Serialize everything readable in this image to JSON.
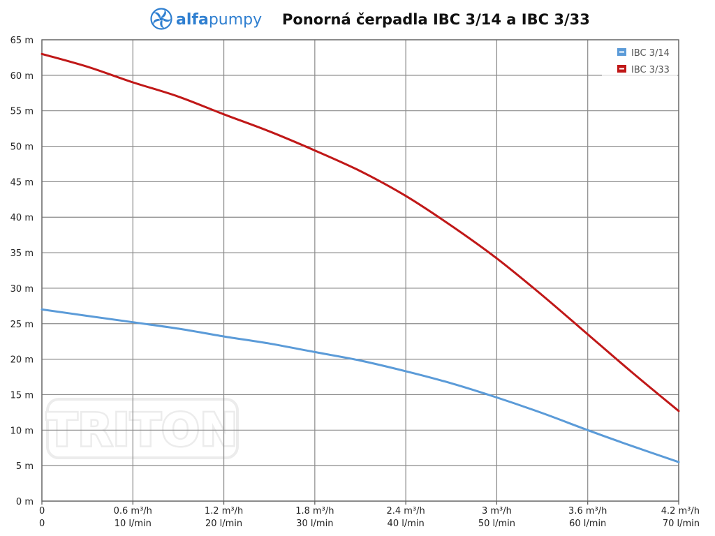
{
  "brand": {
    "part1": "alfa",
    "part2": "pumpy",
    "icon": "pump-impeller-icon",
    "color": "#2f7fd0"
  },
  "watermark": {
    "text": "TRITON"
  },
  "chart_data": {
    "type": "line",
    "title": "Ponorná čerpadla IBC 3/14 a IBC 3/33",
    "xlabel": "",
    "ylabel": "",
    "xlim": [
      0,
      70
    ],
    "ylim": [
      0,
      65
    ],
    "grid": true,
    "legend_position": "top-right",
    "y_ticks": [
      {
        "value": 0,
        "label": "0 m"
      },
      {
        "value": 5,
        "label": "5 m"
      },
      {
        "value": 10,
        "label": "10 m"
      },
      {
        "value": 15,
        "label": "15 m"
      },
      {
        "value": 20,
        "label": "20 m"
      },
      {
        "value": 25,
        "label": "25 m"
      },
      {
        "value": 30,
        "label": "30 m"
      },
      {
        "value": 35,
        "label": "35 m"
      },
      {
        "value": 40,
        "label": "40 m"
      },
      {
        "value": 45,
        "label": "45 m"
      },
      {
        "value": 50,
        "label": "50 m"
      },
      {
        "value": 55,
        "label": "55 m"
      },
      {
        "value": 60,
        "label": "60 m"
      },
      {
        "value": 65,
        "label": "65 m"
      }
    ],
    "x_ticks": [
      {
        "value": 0,
        "label1": "0",
        "label2": "0"
      },
      {
        "value": 10,
        "label1": "0.6 m³/h",
        "label2": "10 l/min"
      },
      {
        "value": 20,
        "label1": "1.2 m³/h",
        "label2": "20 l/min"
      },
      {
        "value": 30,
        "label1": "1.8 m³/h",
        "label2": "30 l/min"
      },
      {
        "value": 40,
        "label1": "2.4 m³/h",
        "label2": "40 l/min"
      },
      {
        "value": 50,
        "label1": "3 m³/h",
        "label2": "50 l/min"
      },
      {
        "value": 60,
        "label1": "3.6 m³/h",
        "label2": "60 l/min"
      },
      {
        "value": 70,
        "label1": "4.2 m³/h",
        "label2": "70 l/min"
      }
    ],
    "series": [
      {
        "name": "IBC 3/14",
        "color": "#5b9bd8",
        "x": [
          0,
          5,
          10,
          15,
          20,
          25,
          30,
          35,
          40,
          45,
          50,
          55,
          60,
          65,
          70
        ],
        "y": [
          27,
          26.1,
          25.2,
          24.3,
          23.2,
          22.2,
          21.0,
          19.8,
          18.3,
          16.6,
          14.6,
          12.4,
          10.0,
          7.7,
          5.5
        ]
      },
      {
        "name": "IBC 3/33",
        "color": "#c01818",
        "x": [
          0,
          5,
          10,
          15,
          20,
          25,
          30,
          35,
          40,
          45,
          50,
          55,
          60,
          65,
          70
        ],
        "y": [
          63,
          61.2,
          59.0,
          57.0,
          54.5,
          52.1,
          49.4,
          46.5,
          43.0,
          38.8,
          34.2,
          29.0,
          23.5,
          18.0,
          12.7
        ]
      }
    ]
  }
}
